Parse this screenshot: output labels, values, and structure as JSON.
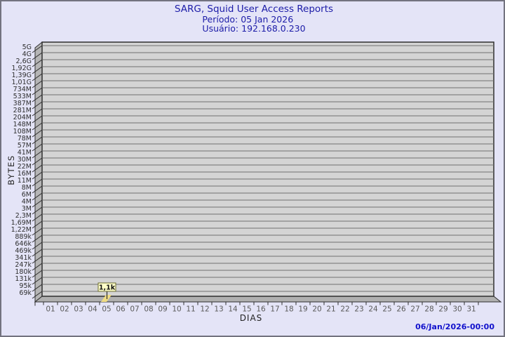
{
  "colors": {
    "page_bg": "#e4e4f7",
    "page_border": "#73737f",
    "title": "#1c1ca8",
    "timestamp": "#1111cc",
    "plot_bg": "#d4d4d4",
    "grid": "#6f6f6f",
    "wall": "#b5b5b5",
    "floor": "#b0b0b0",
    "edge": "#2e2e2e",
    "bar_fill": "#f0dc82",
    "annotation_bg": "#ffffc8",
    "annotation_border": "#6b6b2f",
    "annotation_text": "#111111",
    "x_tick_text": "#5a5a5a",
    "y_tick_text": "#2e2e2e",
    "axis_title_text": "#222222"
  },
  "chart_data": {
    "type": "bar",
    "title": "SARG, Squid User Access Reports",
    "period_label": "Período: 05 Jan 2026",
    "user_label": "Usuário: 192.168.0.230",
    "xlabel": "DIAS",
    "ylabel": "BYTES",
    "y_scale": "log",
    "ylim_labels": [
      "69k",
      "5G"
    ],
    "grid": true,
    "y_tick_labels": [
      "5G",
      "4G",
      "2,6G",
      "1,92G",
      "1,39G",
      "1,01G",
      "734M",
      "533M",
      "387M",
      "281M",
      "204M",
      "148M",
      "108M",
      "78M",
      "57M",
      "41M",
      "30M",
      "22M",
      "16M",
      "11M",
      "8M",
      "6M",
      "4M",
      "3M",
      "2,3M",
      "1,69M",
      "1,22M",
      "889k",
      "646k",
      "469k",
      "341k",
      "247k",
      "180k",
      "131k",
      "95k",
      "69k"
    ],
    "x_tick_labels": [
      "01",
      "02",
      "03",
      "04",
      "05",
      "06",
      "07",
      "08",
      "09",
      "10",
      "11",
      "12",
      "13",
      "14",
      "15",
      "16",
      "17",
      "18",
      "19",
      "20",
      "21",
      "22",
      "23",
      "24",
      "25",
      "26",
      "27",
      "28",
      "29",
      "30",
      "31"
    ],
    "bars": [
      {
        "x": "05",
        "value_label": "1,1k",
        "value_bytes": 1100
      }
    ],
    "timestamp": "06/Jan/2026-00:00"
  }
}
